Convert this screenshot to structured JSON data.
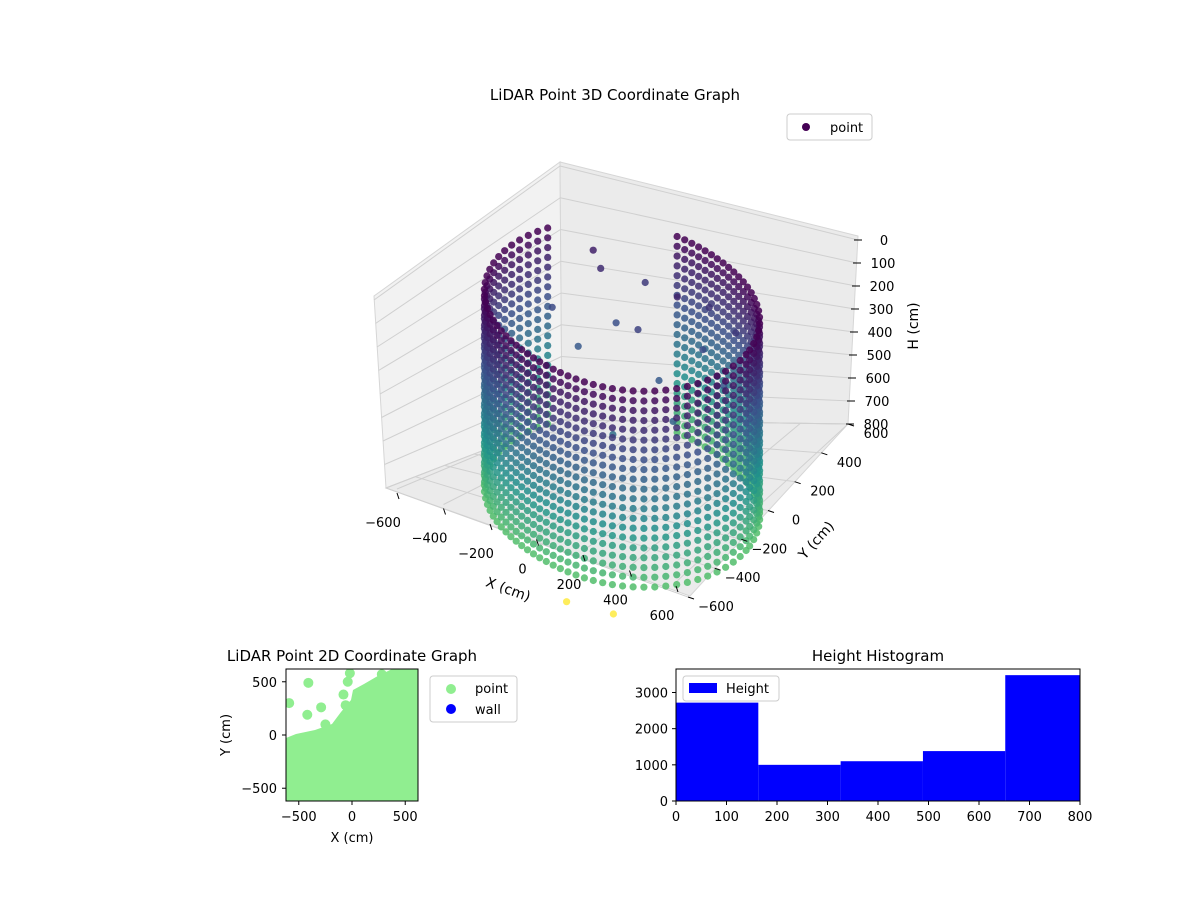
{
  "colors": {
    "viridis_dark": "#440154",
    "viridis_mid": "#31688e",
    "viridis_teal": "#21918c",
    "viridis_yellow": "#fde725",
    "point_2d": "#90ee90",
    "wall_2d": "#0000ff",
    "histogram_bar": "#0000ff"
  },
  "chart_data": [
    {
      "type": "scatter",
      "title": "LiDAR Point 3D Coordinate Graph",
      "xlabel": "X (cm)",
      "ylabel": "Y (cm)",
      "zlabel": "H (cm)",
      "x_ticks": [
        "−600",
        "−400",
        "−200",
        "0",
        "200",
        "400",
        "600"
      ],
      "y_ticks": [
        "−600",
        "−400",
        "−200",
        "0",
        "200",
        "400",
        "600"
      ],
      "z_ticks": [
        "0",
        "100",
        "200",
        "300",
        "400",
        "500",
        "600",
        "700",
        "800"
      ],
      "xlim": [
        -600,
        600
      ],
      "ylim": [
        -600,
        600
      ],
      "zlim": [
        800,
        0
      ],
      "z_axis_inverted": true,
      "colormap": "viridis",
      "legend": {
        "entries": [
          "point"
        ],
        "placement": "upper right"
      },
      "grid": true,
      "series": [
        {
          "name": "point",
          "shape": "roughly circular wall of points sampled at discrete heights from 0 to 800 cm, plus scattered interior points",
          "ring_radius_estimate": 560,
          "outlier_points": [
            {
              "x": 130,
              "y": -620,
              "h": 800
            },
            {
              "x": 320,
              "y": -600,
              "h": 800
            }
          ]
        }
      ]
    },
    {
      "type": "scatter",
      "title": "LiDAR Point 2D Coordinate Graph",
      "xlabel": "X (cm)",
      "ylabel": "Y (cm)",
      "x_ticks": [
        "−500",
        "0",
        "500"
      ],
      "y_ticks": [
        "−500",
        "0",
        "500"
      ],
      "xlim": [
        -620,
        620
      ],
      "ylim": [
        -620,
        620
      ],
      "legend": {
        "entries": [
          "point",
          "wall"
        ],
        "placement": "outside right"
      },
      "series": [
        {
          "name": "point",
          "color": "#90ee90",
          "points": [
            [
              -590,
              300
            ],
            [
              -410,
              490
            ],
            [
              -420,
              190
            ],
            [
              -290,
              260
            ],
            [
              -250,
              100
            ],
            [
              -60,
              280
            ],
            [
              -80,
              380
            ],
            [
              -40,
              500
            ],
            [
              -20,
              580
            ],
            [
              280,
              570
            ]
          ],
          "region": "filled green area covering most of the plot except the upper-left corner"
        },
        {
          "name": "wall",
          "color": "#0000ff",
          "points": []
        }
      ]
    },
    {
      "type": "bar",
      "title": "Height Histogram",
      "xlabel": "",
      "ylabel": "",
      "x_ticks": [
        "0",
        "100",
        "200",
        "300",
        "400",
        "500",
        "600",
        "700",
        "800"
      ],
      "y_ticks": [
        "0",
        "1000",
        "2000",
        "3000"
      ],
      "xlim": [
        0,
        800
      ],
      "ylim": [
        0,
        3650
      ],
      "bin_edges": [
        0,
        163,
        326,
        489,
        652,
        815
      ],
      "values": [
        2720,
        1000,
        1100,
        1380,
        3480
      ],
      "series": [
        {
          "name": "Height",
          "color": "#0000ff"
        }
      ],
      "legend": {
        "entries": [
          "Height"
        ],
        "placement": "upper left"
      }
    }
  ]
}
